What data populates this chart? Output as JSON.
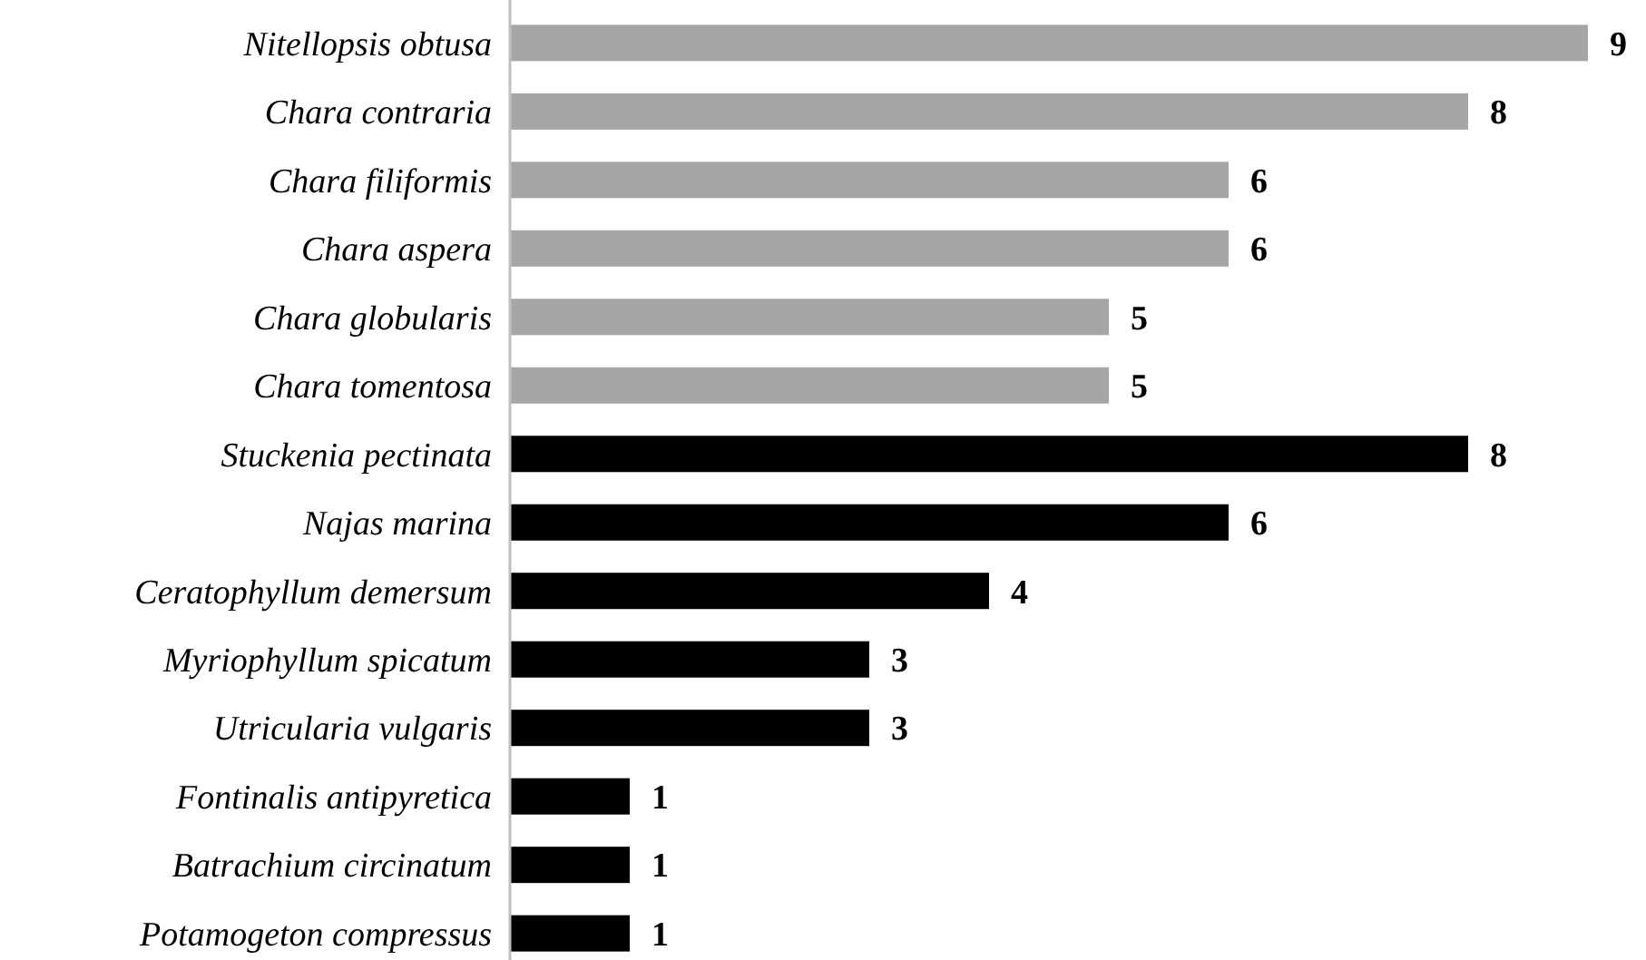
{
  "chart_data": {
    "type": "bar",
    "orientation": "horizontal",
    "data_labels": true,
    "categories": [
      "Nitellopsis obtusa",
      "Chara contraria",
      "Chara filiformis",
      "Chara aspera",
      "Chara globularis",
      "Chara tomentosa",
      "Stuckenia pectinata",
      "Najas marina",
      "Ceratophyllum demersum",
      "Myriophyllum spicatum",
      "Utricularia vulgaris",
      "Fontinalis antipyretica",
      "Batrachium circinatum",
      "Potamogeton compressus"
    ],
    "values": [
      9,
      8,
      6,
      6,
      5,
      5,
      8,
      6,
      4,
      3,
      3,
      1,
      1,
      1
    ],
    "colors": [
      "#a6a6a6",
      "#a6a6a6",
      "#a6a6a6",
      "#a6a6a6",
      "#a6a6a6",
      "#a6a6a6",
      "#000000",
      "#000000",
      "#000000",
      "#000000",
      "#000000",
      "#000000",
      "#000000",
      "#000000"
    ]
  }
}
